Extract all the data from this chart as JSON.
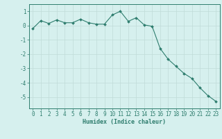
{
  "x": [
    0,
    1,
    2,
    3,
    4,
    5,
    6,
    7,
    8,
    9,
    10,
    11,
    12,
    13,
    14,
    15,
    16,
    17,
    18,
    19,
    20,
    21,
    22,
    23
  ],
  "y": [
    -0.2,
    0.35,
    0.15,
    0.4,
    0.2,
    0.2,
    0.45,
    0.2,
    0.1,
    0.1,
    0.75,
    1.0,
    0.3,
    0.55,
    0.05,
    -0.05,
    -1.6,
    -2.35,
    -2.85,
    -3.35,
    -3.7,
    -4.35,
    -4.9,
    -5.3
  ],
  "line_color": "#2e7d6e",
  "marker": "D",
  "markersize": 2.0,
  "linewidth": 0.8,
  "xlabel": "Humidex (Indice chaleur)",
  "xlabel_fontsize": 6.0,
  "xlabel_color": "#2e7d6e",
  "xlabel_bold": true,
  "ylabel_ticks": [
    -5,
    -4,
    -3,
    -2,
    -1,
    0,
    1
  ],
  "xtick_labels": [
    "0",
    "1",
    "2",
    "3",
    "4",
    "5",
    "6",
    "7",
    "8",
    "9",
    "10",
    "11",
    "12",
    "13",
    "14",
    "15",
    "16",
    "17",
    "18",
    "19",
    "20",
    "21",
    "22",
    "23"
  ],
  "ylim": [
    -5.8,
    1.5
  ],
  "xlim": [
    -0.5,
    23.5
  ],
  "bg_color": "#d6f0ee",
  "grid_color": "#c0dbd8",
  "tick_color": "#2e7d6e",
  "tick_fontsize": 5.5,
  "spine_color": "#2e7d6e"
}
